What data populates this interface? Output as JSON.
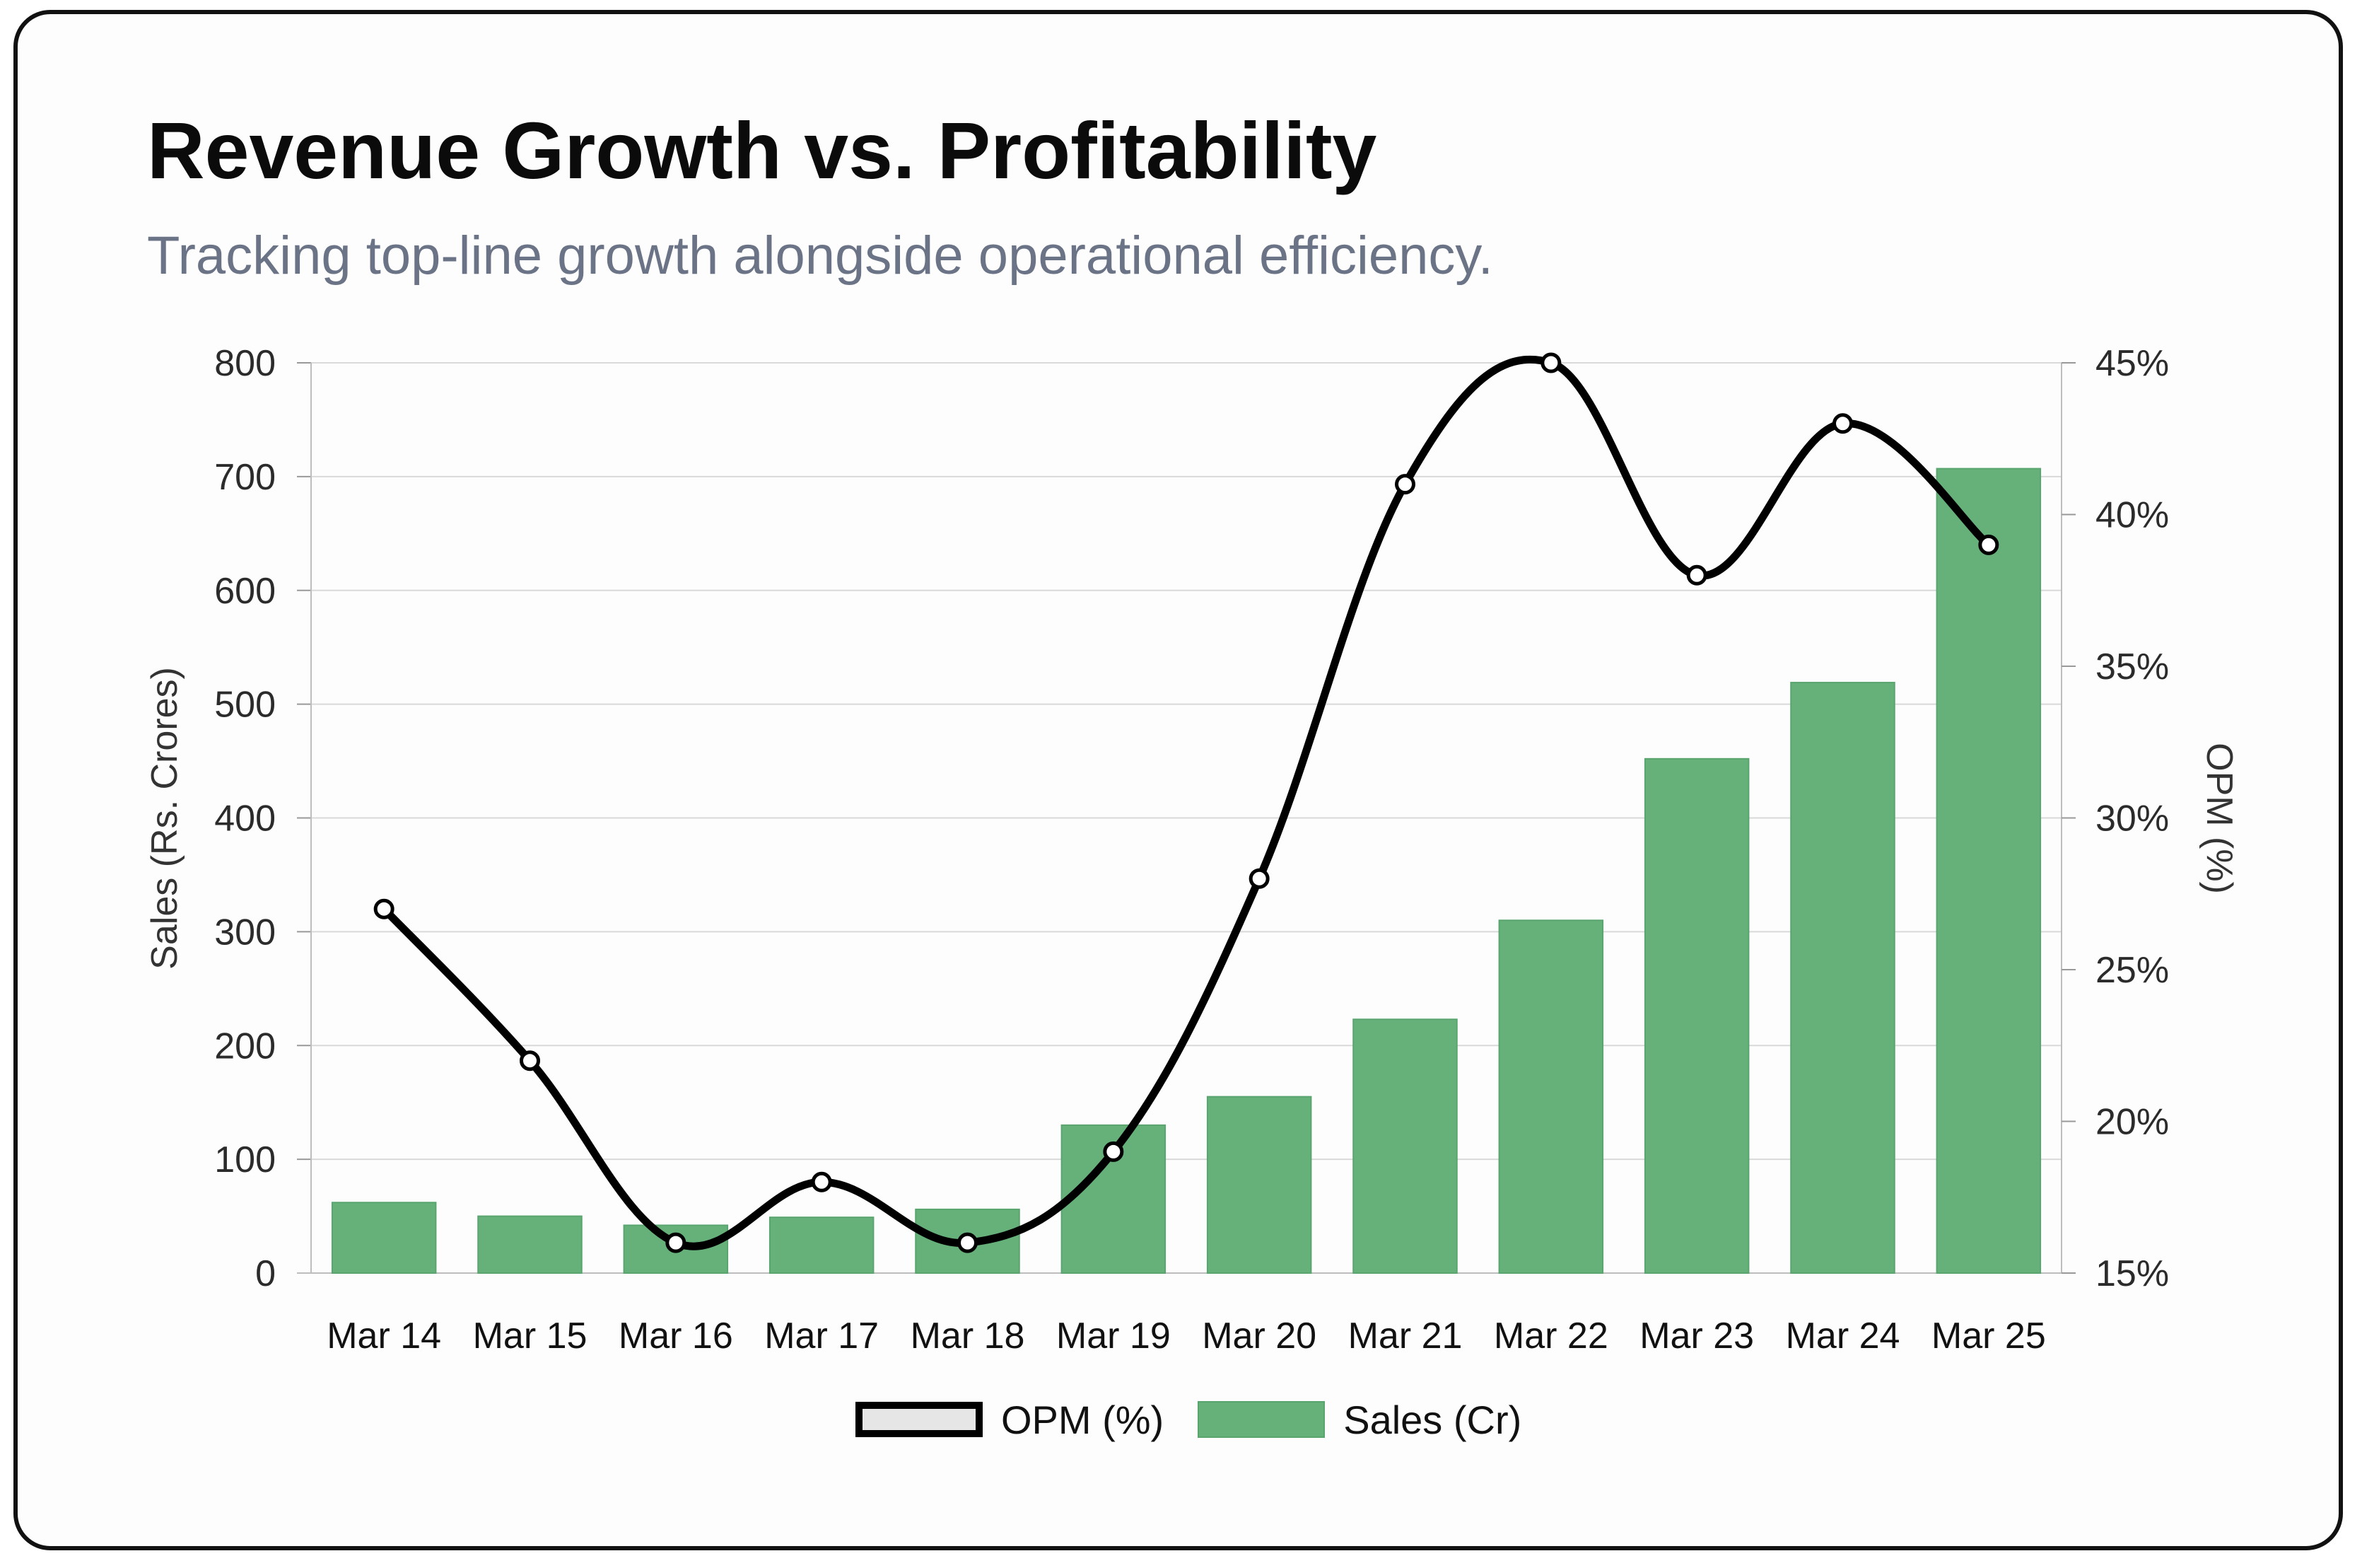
{
  "header": {
    "title": "Revenue Growth vs. Profitability",
    "subtitle": "Tracking top-line growth alongside operational efficiency."
  },
  "colors": {
    "bar": "#66b17a",
    "bar_border": "#5aa56f",
    "line": "#000000",
    "grid": "#d9d9d9",
    "subtitle": "#6b7386"
  },
  "legend": {
    "line_label": "OPM (%)",
    "bar_label": "Sales (Cr)"
  },
  "chart_data": {
    "type": "bar",
    "title": "Revenue Growth vs. Profitability",
    "subtitle": "Tracking top-line growth alongside operational efficiency.",
    "categories": [
      "Mar 14",
      "Mar 15",
      "Mar 16",
      "Mar 17",
      "Mar 18",
      "Mar 19",
      "Mar 20",
      "Mar 21",
      "Mar 22",
      "Mar 23",
      "Mar 24",
      "Mar 25"
    ],
    "series": [
      {
        "name": "Sales (Cr)",
        "type": "bar",
        "axis": "left",
        "values": [
          62,
          50,
          42,
          49,
          56,
          130,
          155,
          223,
          310,
          452,
          519,
          707
        ]
      },
      {
        "name": "OPM (%)",
        "type": "line",
        "axis": "right",
        "values": [
          27,
          22,
          16,
          18,
          16,
          19,
          28,
          41,
          45,
          38,
          43,
          39
        ]
      }
    ],
    "ylabel": "Sales (Rs. Crores)",
    "y2label": "OPM (%)",
    "ylim": [
      0,
      800
    ],
    "y2lim": [
      15,
      45
    ],
    "yticks": [
      "0",
      "100",
      "200",
      "300",
      "400",
      "500",
      "600",
      "700",
      "800"
    ],
    "y2ticks": [
      "15%",
      "20%",
      "25%",
      "30%",
      "35%",
      "40%",
      "45%"
    ],
    "grid": true,
    "legend_position": "bottom-center"
  }
}
